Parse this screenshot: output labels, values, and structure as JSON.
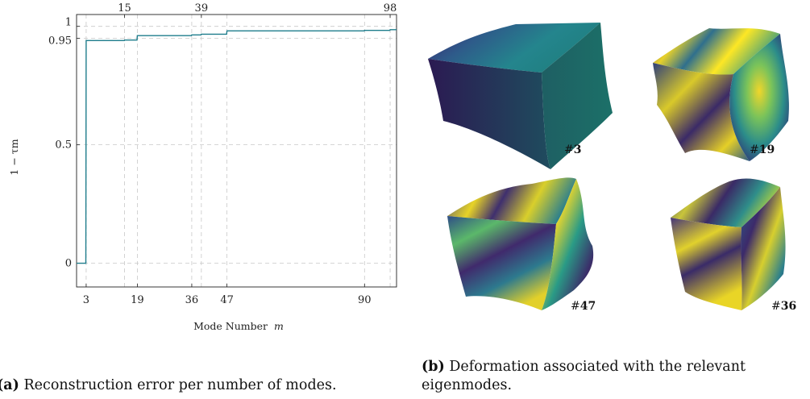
{
  "chart_data": {
    "type": "line",
    "xlabel_prefix": "Mode Number",
    "xlabel_var": "m",
    "ylabel": "1 − τm",
    "xlim": [
      0,
      100
    ],
    "ylim": [
      -0.1,
      1.05
    ],
    "x_ticks": [
      3,
      19,
      36,
      47,
      90
    ],
    "x_ticks_top": [
      15,
      39,
      98
    ],
    "y_ticks": [
      0,
      0.5,
      0.95,
      1
    ],
    "y_tick_labels": [
      "0",
      "0.5",
      "0.95",
      "1"
    ],
    "grid": true,
    "vertical_guides": [
      3,
      15,
      19,
      36,
      39,
      47,
      90,
      98
    ],
    "horizontal_guides": [
      0,
      0.5,
      0.95,
      1
    ],
    "line_color": "#1f7d8c",
    "series": [
      {
        "x": [
          0,
          2.9,
          3,
          14.9,
          15,
          18.9,
          19,
          35.9,
          36,
          38.9,
          39,
          46.9,
          47,
          89.9,
          90,
          97.9,
          98,
          100
        ],
        "y": [
          0,
          0,
          0.94,
          0.94,
          0.942,
          0.942,
          0.961,
          0.961,
          0.964,
          0.964,
          0.967,
          0.967,
          0.981,
          0.981,
          0.983,
          0.983,
          0.986,
          0.986
        ]
      }
    ]
  },
  "captions": {
    "a_label": "(a)",
    "a_text": "Reconstruction error per number of modes.",
    "b_label": "(b)",
    "b_text_line1": "Deformation associated with the relevant",
    "b_text_line2": "eigenmodes."
  },
  "eigenmodes": [
    {
      "tag_hash": "#",
      "tag_num": "3"
    },
    {
      "tag_hash": "#",
      "tag_num": "19"
    },
    {
      "tag_hash": "#",
      "tag_num": "47"
    },
    {
      "tag_hash": "#",
      "tag_num": "36"
    }
  ],
  "colors": {
    "viridis_dark": "#440154",
    "viridis_blue": "#31688e",
    "viridis_teal": "#21918c",
    "viridis_green": "#35b779",
    "viridis_yellow": "#fde725"
  }
}
